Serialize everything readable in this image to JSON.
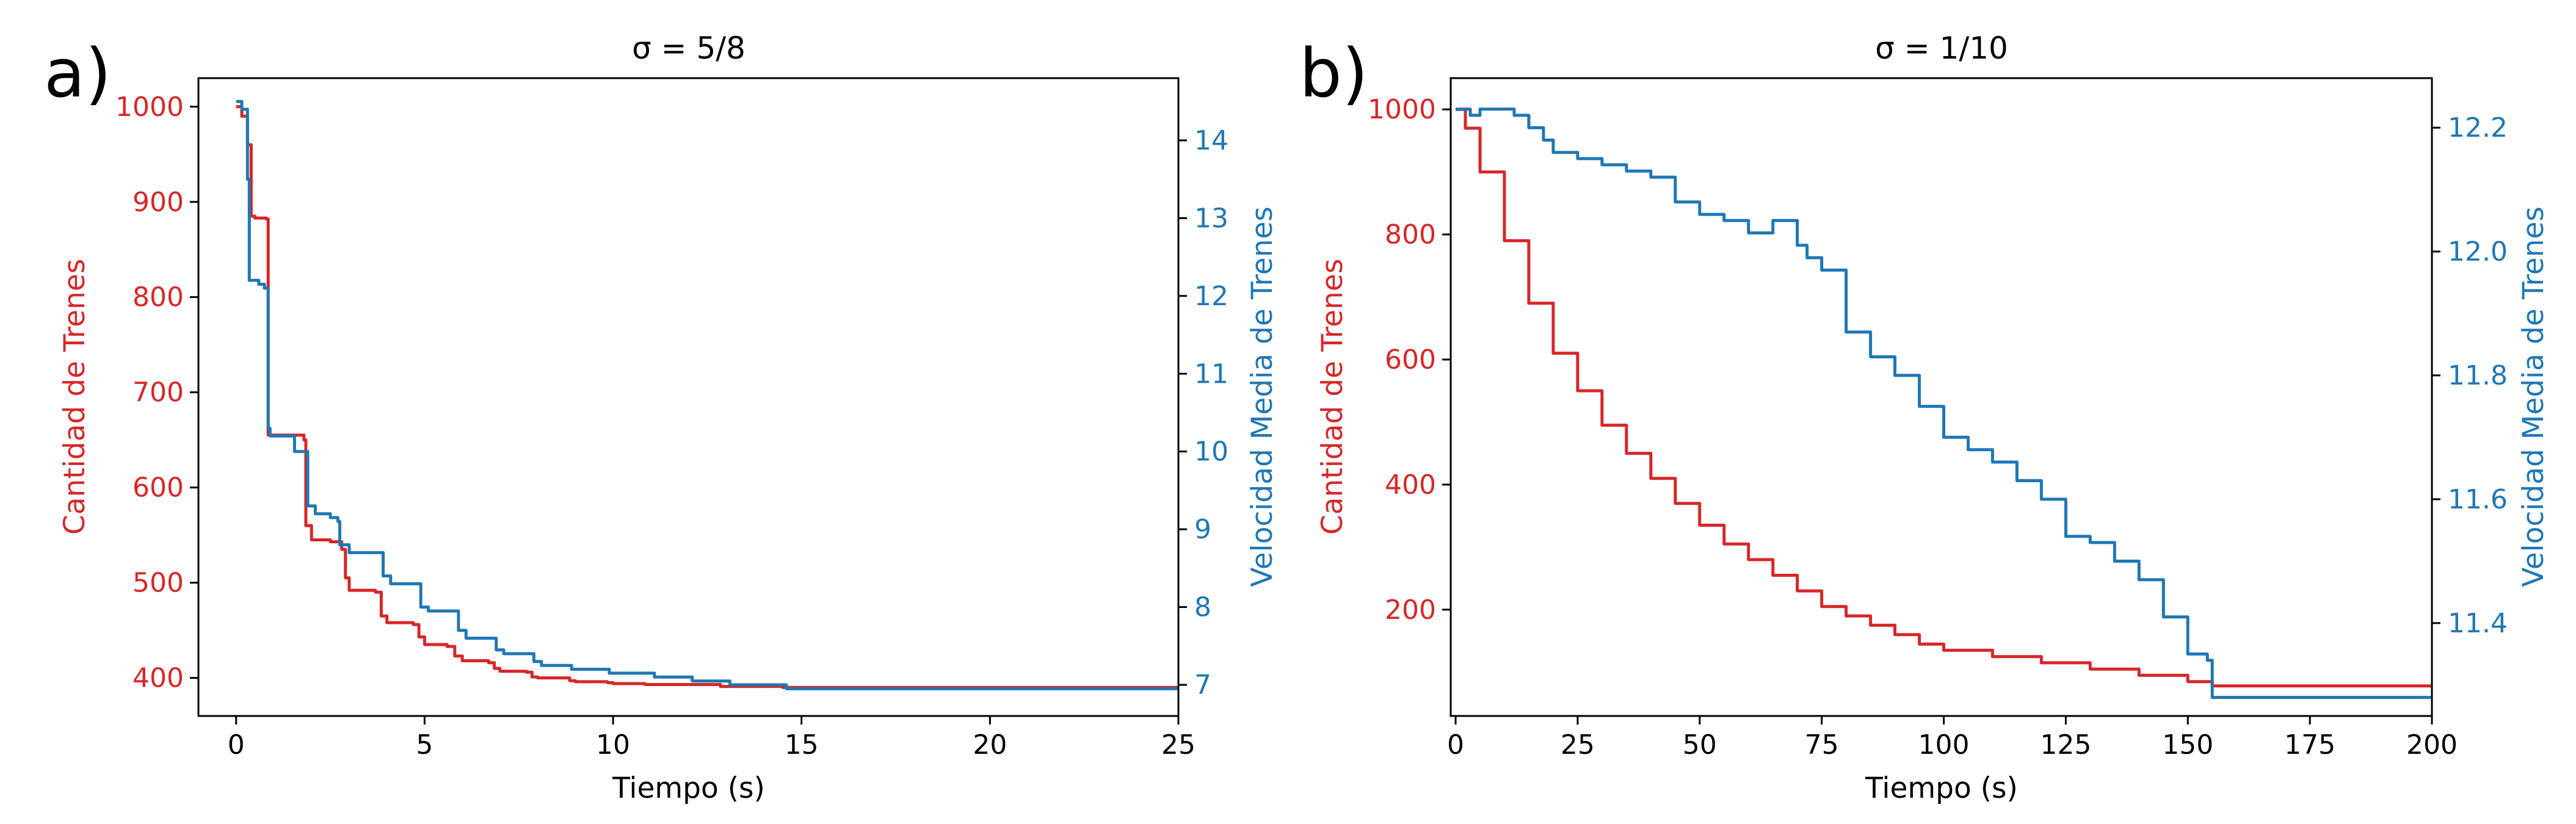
{
  "chart_data": [
    {
      "type": "line",
      "panel_label": "a)",
      "title": "σ = 5/8",
      "xlabel": "Tiempo (s)",
      "ylabel_left": "Cantidad de Trenes",
      "ylabel_right": "Velocidad Media de Trenes",
      "xlim": [
        -1,
        25
      ],
      "ylim_left": [
        360,
        1030
      ],
      "ylim_right": [
        6.6,
        14.8
      ],
      "xticks": [
        "0",
        "5",
        "10",
        "15",
        "20",
        "25"
      ],
      "yticks_left": [
        "400",
        "500",
        "600",
        "700",
        "800",
        "900",
        "1000"
      ],
      "yticks_right": [
        "7",
        "8",
        "9",
        "10",
        "11",
        "12",
        "13",
        "14"
      ],
      "grid": false,
      "colors": {
        "left": "#d62728",
        "right": "#1f77b4"
      },
      "series": [
        {
          "name": "Cantidad de Trenes",
          "axis": "left",
          "x": [
            0,
            0.15,
            0.3,
            0.4,
            0.5,
            0.8,
            0.85,
            1.0,
            1.5,
            1.8,
            1.85,
            2.0,
            2.5,
            2.8,
            2.9,
            3.0,
            3.7,
            3.85,
            4.0,
            4.7,
            4.85,
            5.0,
            5.6,
            5.8,
            6.0,
            6.7,
            6.85,
            7.0,
            7.7,
            7.85,
            8.0,
            8.7,
            8.85,
            9.0,
            9.7,
            9.85,
            10.0,
            10.7,
            10.85,
            11.0,
            12.7,
            12.85,
            13.0,
            14.5,
            25
          ],
          "y": [
            1000,
            990,
            960,
            885,
            883,
            882,
            655,
            655,
            655,
            650,
            560,
            545,
            543,
            535,
            505,
            492,
            490,
            465,
            458,
            456,
            443,
            435,
            433,
            423,
            418,
            416,
            410,
            407,
            406,
            401,
            400,
            400,
            397,
            396,
            396,
            395,
            394,
            394,
            393,
            393,
            393,
            391,
            391,
            390,
            390
          ]
        },
        {
          "name": "Velocidad Media de Trenes",
          "axis": "right",
          "x": [
            0,
            0.15,
            0.3,
            0.35,
            0.4,
            0.6,
            0.75,
            0.85,
            0.9,
            1.2,
            1.5,
            1.55,
            1.85,
            1.9,
            2.1,
            2.5,
            2.7,
            2.75,
            3.0,
            3.8,
            3.9,
            4.1,
            4.8,
            4.9,
            5.1,
            5.8,
            5.9,
            6.1,
            6.8,
            6.9,
            7.1,
            7.8,
            7.9,
            8.1,
            8.8,
            8.9,
            9.1,
            9.8,
            9.9,
            10.1,
            11.0,
            11.1,
            12.0,
            12.1,
            13.0,
            13.1,
            14.5,
            14.6,
            25
          ],
          "y": [
            14.5,
            14.4,
            13.5,
            12.2,
            12.2,
            12.15,
            12.1,
            10.3,
            10.2,
            10.2,
            10.2,
            10.0,
            10.0,
            9.3,
            9.2,
            9.15,
            9.1,
            8.8,
            8.7,
            8.7,
            8.4,
            8.3,
            8.3,
            8.0,
            7.95,
            7.95,
            7.7,
            7.6,
            7.6,
            7.45,
            7.4,
            7.4,
            7.3,
            7.25,
            7.25,
            7.2,
            7.2,
            7.2,
            7.15,
            7.15,
            7.15,
            7.1,
            7.1,
            7.05,
            7.05,
            7.0,
            7.0,
            6.95,
            6.95
          ]
        }
      ]
    },
    {
      "type": "line",
      "panel_label": "b)",
      "title": "σ = 1/10",
      "xlabel": "Tiempo (s)",
      "ylabel_left": "Cantidad de Trenes",
      "ylabel_right": "Velocidad Media de Trenes",
      "xlim": [
        -1,
        200
      ],
      "ylim_left": [
        30,
        1050
      ],
      "ylim_right": [
        11.25,
        12.28
      ],
      "xticks": [
        "0",
        "25",
        "50",
        "75",
        "100",
        "125",
        "150",
        "175",
        "200"
      ],
      "yticks_left": [
        "200",
        "400",
        "600",
        "800",
        "1000"
      ],
      "yticks_right": [
        "11.4",
        "11.6",
        "11.8",
        "12.0",
        "12.2"
      ],
      "grid": false,
      "colors": {
        "left": "#d62728",
        "right": "#1f77b4"
      },
      "series": [
        {
          "name": "Cantidad de Trenes",
          "axis": "left",
          "x": [
            0,
            2,
            5,
            10,
            15,
            20,
            25,
            30,
            35,
            40,
            45,
            50,
            55,
            60,
            65,
            70,
            75,
            80,
            85,
            90,
            95,
            100,
            110,
            120,
            130,
            140,
            150,
            155,
            200
          ],
          "y": [
            1000,
            970,
            900,
            790,
            690,
            610,
            550,
            495,
            450,
            410,
            370,
            335,
            305,
            280,
            255,
            230,
            205,
            190,
            175,
            160,
            145,
            135,
            125,
            115,
            105,
            95,
            85,
            78,
            78
          ]
        },
        {
          "name": "Velocidad Media de Trenes",
          "axis": "right",
          "x": [
            0,
            3,
            5,
            8,
            12,
            15,
            18,
            20,
            25,
            30,
            35,
            40,
            45,
            50,
            55,
            60,
            65,
            70,
            72,
            75,
            80,
            85,
            90,
            95,
            100,
            105,
            110,
            115,
            120,
            125,
            130,
            135,
            140,
            145,
            150,
            154,
            155,
            200
          ],
          "y": [
            12.23,
            12.22,
            12.23,
            12.23,
            12.22,
            12.2,
            12.18,
            12.16,
            12.15,
            12.14,
            12.13,
            12.12,
            12.08,
            12.06,
            12.05,
            12.03,
            12.05,
            12.01,
            11.99,
            11.97,
            11.87,
            11.83,
            11.8,
            11.75,
            11.7,
            11.68,
            11.66,
            11.63,
            11.6,
            11.54,
            11.53,
            11.5,
            11.47,
            11.41,
            11.35,
            11.34,
            11.28,
            11.28
          ]
        }
      ]
    }
  ]
}
